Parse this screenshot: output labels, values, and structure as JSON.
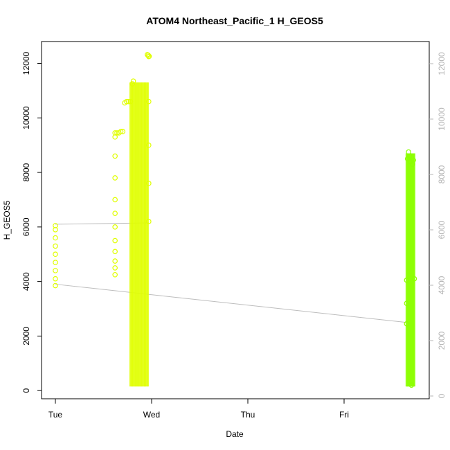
{
  "chart_data": {
    "type": "scatter",
    "title": "ATOM4 Northeast_Pacific_1 H_GEOS5",
    "xlabel": "Date",
    "ylabel": "H_GEOS5",
    "x_tick_labels": [
      "Tue",
      "Wed",
      "Thu",
      "Fri"
    ],
    "y_ticks_left": [
      "0",
      "2000",
      "4000",
      "6000",
      "8000",
      "10000",
      "12000"
    ],
    "y_ticks_right": [
      "0",
      "2000",
      "4000",
      "6000",
      "8000",
      "10000",
      "12000"
    ],
    "x_range_days": [
      0,
      3.9
    ],
    "ylim": [
      -300,
      12800
    ],
    "right_axis_range": [
      -100,
      12800
    ],
    "grid": false,
    "legend": "none",
    "colors": {
      "yellow": "#e0ff00",
      "lime": "#8cff00",
      "guide_line": "#bdbdbd",
      "right_axis": "#b4b4b4"
    },
    "guide_lines": [
      {
        "from": [
          0,
          6100
        ],
        "to": [
          0.97,
          6150
        ]
      },
      {
        "from": [
          0,
          3900
        ],
        "to": [
          3.65,
          2500
        ]
      }
    ],
    "series": [
      {
        "color_key": "yellow",
        "points": [
          [
            0.0,
            3850
          ],
          [
            0.0,
            4100
          ],
          [
            0.0,
            4400
          ],
          [
            0.0,
            4700
          ],
          [
            0.0,
            5000
          ],
          [
            0.0,
            5300
          ],
          [
            0.0,
            5600
          ],
          [
            0.0,
            5900
          ],
          [
            0.0,
            6050
          ],
          [
            0.62,
            4250
          ],
          [
            0.62,
            4500
          ],
          [
            0.62,
            4750
          ],
          [
            0.62,
            5100
          ],
          [
            0.62,
            5500
          ],
          [
            0.62,
            6000
          ],
          [
            0.62,
            6500
          ],
          [
            0.62,
            7000
          ],
          [
            0.62,
            7800
          ],
          [
            0.62,
            8600
          ],
          [
            0.62,
            9300
          ],
          [
            0.62,
            9450
          ],
          [
            0.64,
            9450
          ],
          [
            0.66,
            9450
          ],
          [
            0.68,
            9500
          ],
          [
            0.7,
            9500
          ],
          [
            0.72,
            10550
          ],
          [
            0.74,
            10600
          ],
          [
            0.76,
            10600
          ],
          [
            0.78,
            10600
          ],
          [
            0.8,
            11250
          ],
          [
            0.81,
            11350
          ],
          [
            0.97,
            6200
          ],
          [
            0.97,
            7600
          ],
          [
            0.97,
            9000
          ],
          [
            0.97,
            10600
          ],
          [
            0.97,
            12250
          ],
          [
            0.955,
            12320
          ],
          [
            0.965,
            12300
          ],
          [
            0.975,
            12260
          ]
        ],
        "bands": [
          {
            "x": [
              0.78,
              0.96
            ],
            "y": [
              150,
              11300
            ],
            "count": 14
          }
        ]
      },
      {
        "color_key": "lime",
        "points": [
          [
            3.65,
            2450
          ],
          [
            3.65,
            3200
          ],
          [
            3.65,
            4050
          ],
          [
            3.66,
            8500
          ],
          [
            3.67,
            8750
          ],
          [
            3.68,
            8600
          ],
          [
            3.69,
            8400
          ],
          [
            3.7,
            200
          ],
          [
            3.71,
            8300
          ],
          [
            3.72,
            8450
          ],
          [
            3.73,
            4100
          ]
        ],
        "bands": [
          {
            "x": [
              3.65,
              3.73
            ],
            "y": [
              150,
              8700
            ],
            "count": 9
          }
        ]
      }
    ]
  }
}
